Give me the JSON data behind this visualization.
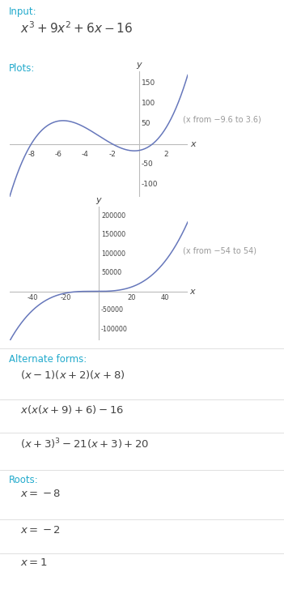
{
  "title_input": "Input:",
  "input_formula": "$x^3 + 9x^2 + 6x - 16$",
  "plots_label": "Plots:",
  "plot1_xrange": [
    -9.6,
    3.6
  ],
  "plot1_xlabel_note": "(x from −9.6 to 3.6)",
  "plot1_xticks": [
    -8,
    -6,
    -4,
    -2,
    2
  ],
  "plot1_yticks": [
    -100,
    -50,
    50,
    100,
    150
  ],
  "plot2_xrange": [
    -54,
    54
  ],
  "plot2_xlabel_note": "(x from −54 to 54)",
  "plot2_xticks": [
    -40,
    -20,
    20,
    40
  ],
  "plot2_yticks": [
    -100000,
    -50000,
    50000,
    100000,
    150000,
    200000
  ],
  "plot1_ylim": [
    -130,
    178
  ],
  "plot2_ylim": [
    -130000,
    225000
  ],
  "alt_forms_label": "Alternate forms:",
  "alt_form1": "$(x - 1)(x + 2)(x + 8)$",
  "alt_form2": "$x(x(x + 9) + 6) - 16$",
  "alt_form3": "$(x + 3)^3 - 21(x + 3) + 20$",
  "roots_label": "Roots:",
  "root1": "$x = -8$",
  "root2": "$x = -2$",
  "root3": "$x = 1$",
  "curve_color": "#6677bb",
  "label_color": "#22aacc",
  "bg_color": "#ffffff",
  "text_color": "#444444",
  "note_color": "#999999",
  "axis_color": "#bbbbbb",
  "separator_color": "#e0e0e0"
}
